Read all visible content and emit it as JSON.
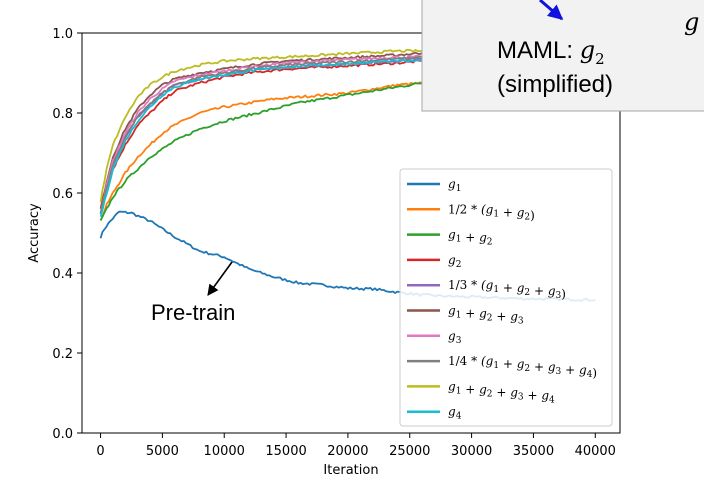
{
  "chart_data": {
    "type": "line",
    "title": "",
    "xlabel": "Iteration",
    "ylabel": "Accuracy",
    "xlim": [
      -1500,
      42000
    ],
    "ylim": [
      0.0,
      1.0
    ],
    "xticks": [
      0,
      5000,
      10000,
      15000,
      20000,
      25000,
      30000,
      35000,
      40000
    ],
    "xtick_labels": [
      "0",
      "5000",
      "10000",
      "15000",
      "20000",
      "25000",
      "30000",
      "35000",
      "40000"
    ],
    "yticks": [
      0.0,
      0.2,
      0.4,
      0.6,
      0.8,
      1.0
    ],
    "ytick_labels": [
      "0.0",
      "0.2",
      "0.4",
      "0.6",
      "0.8",
      "1.0"
    ],
    "grid": false,
    "legend_position": "right",
    "series": [
      {
        "name": "g1",
        "legend": [
          [
            "g",
            "1"
          ]
        ],
        "color": "#1f77b4",
        "x": [
          0,
          300,
          800,
          1500,
          2500,
          4000,
          6000,
          8000,
          10000,
          12000,
          14000,
          16000,
          18000,
          20000,
          22000,
          24000,
          26000,
          28000,
          30000,
          32000,
          34000,
          36000,
          38000,
          40000
        ],
        "y": [
          0.49,
          0.51,
          0.53,
          0.553,
          0.55,
          0.53,
          0.49,
          0.455,
          0.44,
          0.41,
          0.39,
          0.375,
          0.37,
          0.362,
          0.36,
          0.352,
          0.345,
          0.342,
          0.34,
          0.338,
          0.336,
          0.335,
          0.334,
          0.333
        ]
      },
      {
        "name": "1/2*(g1+g2)",
        "legend": [
          [
            "1/2",
            ""
          ],
          [
            " * (g",
            "1"
          ],
          [
            " + g",
            "2"
          ],
          [
            ")",
            ""
          ]
        ],
        "color": "#ff7f0e",
        "x": [
          0,
          500,
          1000,
          2000,
          3000,
          4000,
          5000,
          6000,
          8000,
          10000,
          12000,
          14000,
          16000,
          18000,
          20000,
          22000,
          24000,
          26000
        ],
        "y": [
          0.53,
          0.57,
          0.6,
          0.65,
          0.69,
          0.72,
          0.75,
          0.77,
          0.8,
          0.815,
          0.825,
          0.835,
          0.84,
          0.845,
          0.85,
          0.86,
          0.87,
          0.875
        ]
      },
      {
        "name": "g1+g2",
        "legend": [
          [
            "g",
            "1"
          ],
          [
            " + g",
            "2"
          ]
        ],
        "color": "#2ca02c",
        "x": [
          0,
          500,
          1000,
          2000,
          3000,
          4000,
          5000,
          6000,
          8000,
          10000,
          12000,
          14000,
          16000,
          18000,
          20000,
          22000,
          24000,
          26000
        ],
        "y": [
          0.53,
          0.56,
          0.59,
          0.63,
          0.66,
          0.69,
          0.71,
          0.73,
          0.76,
          0.78,
          0.795,
          0.81,
          0.825,
          0.835,
          0.845,
          0.855,
          0.865,
          0.875
        ]
      },
      {
        "name": "g2",
        "legend": [
          [
            "g",
            "2"
          ]
        ],
        "color": "#d62728",
        "x": [
          0,
          500,
          1000,
          2000,
          3000,
          4000,
          5000,
          6000,
          8000,
          10000,
          12000,
          15000,
          18000,
          21000,
          24000,
          26000
        ],
        "y": [
          0.55,
          0.61,
          0.66,
          0.72,
          0.77,
          0.8,
          0.83,
          0.855,
          0.875,
          0.89,
          0.9,
          0.91,
          0.915,
          0.92,
          0.925,
          0.93
        ]
      },
      {
        "name": "1/3*(g1+g2+g3)",
        "legend": [
          [
            "1/3",
            ""
          ],
          [
            " * (g",
            "1"
          ],
          [
            " + g",
            "2"
          ],
          [
            " + g",
            "3"
          ],
          [
            ")",
            ""
          ]
        ],
        "color": "#9467bd",
        "x": [
          0,
          500,
          1000,
          2000,
          3000,
          4000,
          5000,
          6000,
          8000,
          10000,
          12000,
          15000,
          18000,
          21000,
          24000,
          26000
        ],
        "y": [
          0.56,
          0.62,
          0.67,
          0.74,
          0.79,
          0.82,
          0.85,
          0.87,
          0.885,
          0.895,
          0.905,
          0.915,
          0.92,
          0.925,
          0.93,
          0.935
        ]
      },
      {
        "name": "g1+g2+g3",
        "legend": [
          [
            "g",
            "1"
          ],
          [
            " + g",
            "2"
          ],
          [
            " + g",
            "3"
          ]
        ],
        "color": "#8c564b",
        "x": [
          0,
          500,
          1000,
          2000,
          3000,
          4000,
          5000,
          6000,
          8000,
          10000,
          12000,
          15000,
          18000,
          21000,
          24000,
          26000
        ],
        "y": [
          0.56,
          0.63,
          0.69,
          0.76,
          0.81,
          0.845,
          0.87,
          0.885,
          0.9,
          0.91,
          0.92,
          0.93,
          0.935,
          0.94,
          0.945,
          0.95
        ]
      },
      {
        "name": "g3",
        "legend": [
          [
            "g",
            "3"
          ]
        ],
        "color": "#e377c2",
        "x": [
          0,
          500,
          1000,
          2000,
          3000,
          4000,
          5000,
          6000,
          8000,
          10000,
          12000,
          15000,
          18000,
          21000,
          24000,
          26000
        ],
        "y": [
          0.55,
          0.62,
          0.68,
          0.75,
          0.8,
          0.835,
          0.86,
          0.88,
          0.895,
          0.905,
          0.915,
          0.925,
          0.93,
          0.935,
          0.94,
          0.94
        ]
      },
      {
        "name": "1/4*(g1+g2+g3+g4)",
        "legend": [
          [
            "1/4",
            ""
          ],
          [
            " * (g",
            "1"
          ],
          [
            " + g",
            "2"
          ],
          [
            " + g",
            "3"
          ],
          [
            " + g",
            "4"
          ],
          [
            ")",
            ""
          ]
        ],
        "color": "#7f7f7f",
        "x": [
          0,
          500,
          1000,
          2000,
          3000,
          4000,
          5000,
          6000,
          8000,
          10000,
          12000,
          15000,
          18000,
          21000,
          24000,
          26000
        ],
        "y": [
          0.55,
          0.61,
          0.67,
          0.74,
          0.79,
          0.825,
          0.85,
          0.87,
          0.89,
          0.9,
          0.91,
          0.92,
          0.925,
          0.93,
          0.935,
          0.94
        ]
      },
      {
        "name": "g1+g2+g3+g4",
        "legend": [
          [
            "g",
            "1"
          ],
          [
            " + g",
            "2"
          ],
          [
            " + g",
            "3"
          ],
          [
            " + g",
            "4"
          ]
        ],
        "color": "#bcbd22",
        "x": [
          0,
          500,
          1000,
          2000,
          3000,
          4000,
          5000,
          6000,
          8000,
          10000,
          12000,
          15000,
          18000,
          21000,
          24000,
          26000
        ],
        "y": [
          0.58,
          0.66,
          0.72,
          0.79,
          0.84,
          0.87,
          0.89,
          0.905,
          0.92,
          0.93,
          0.935,
          0.94,
          0.945,
          0.95,
          0.955,
          0.955
        ]
      },
      {
        "name": "g4",
        "legend": [
          [
            "g",
            "4"
          ]
        ],
        "color": "#17becf",
        "x": [
          0,
          500,
          1000,
          2000,
          3000,
          4000,
          5000,
          6000,
          8000,
          10000,
          12000,
          15000,
          18000,
          21000,
          24000,
          26000
        ],
        "y": [
          0.54,
          0.6,
          0.66,
          0.73,
          0.78,
          0.815,
          0.845,
          0.865,
          0.885,
          0.895,
          0.905,
          0.915,
          0.92,
          0.925,
          0.93,
          0.93
        ]
      }
    ],
    "annotations": [
      {
        "text": "Pre-train",
        "arrow_to": [
          8300,
          0.415
        ]
      }
    ]
  },
  "callout": {
    "line1_prefix": "MAML: ",
    "line1_var": "g",
    "line1_sub": "2",
    "line2": "(simplified)",
    "corner_text": "g"
  }
}
